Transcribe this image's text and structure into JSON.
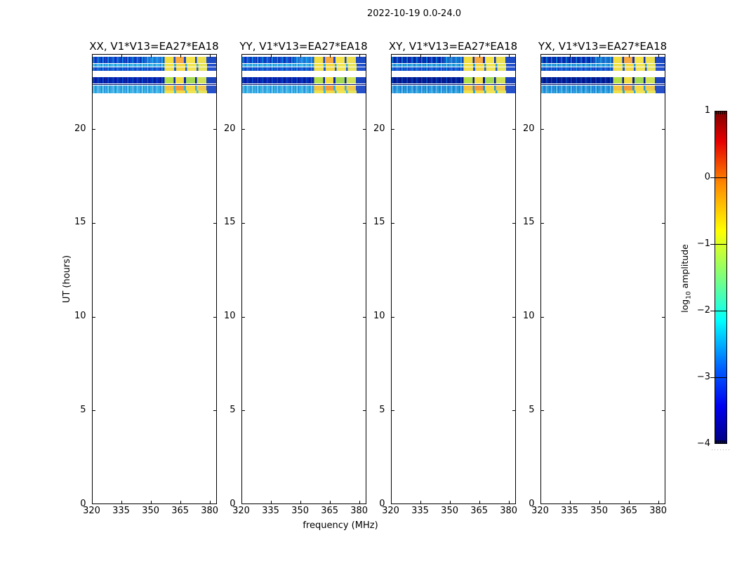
{
  "figure": {
    "title": "2022-10-19 0.0-24.0",
    "xlabel": "frequency (MHz)",
    "ylabel": "UT (hours)",
    "colorbar": {
      "label_prefix": "log",
      "label_sub": "10",
      "label_suffix": " amplitude",
      "colormap": "jet",
      "range": [
        -4,
        1
      ],
      "ticks": [
        {
          "label": "1",
          "value": 1
        },
        {
          "label": "0",
          "value": 0
        },
        {
          "label": "−1",
          "value": -1
        },
        {
          "label": "−2",
          "value": -2
        },
        {
          "label": "−3",
          "value": -3
        },
        {
          "label": "−4",
          "value": -4
        }
      ],
      "gradient": [
        "#7f0000 0%",
        "#e60000 9%",
        "#ff8c00 22%",
        "#ffff00 36%",
        "#7dff7d 50%",
        "#00ffff 63%",
        "#0064ff 77%",
        "#0000f0 89%",
        "#00007f 100%"
      ]
    }
  },
  "chart_data": {
    "type": "heatmap",
    "panels": [
      {
        "title": "XX, V1*V13=EA27*EA18",
        "tone": "normal"
      },
      {
        "title": "YY, V1*V13=EA27*EA18",
        "tone": "normal"
      },
      {
        "title": "XY, V1*V13=EA27*EA18",
        "tone": "dark"
      },
      {
        "title": "YX, V1*V13=EA27*EA18",
        "tone": "dark"
      }
    ],
    "x_range": [
      320,
      383.5
    ],
    "y_range": [
      0,
      24
    ],
    "x_ticks": [
      320,
      335,
      350,
      365,
      380
    ],
    "y_ticks": [
      0,
      5,
      10,
      15,
      20
    ],
    "block_freq_start_mhz": 357,
    "bands": [
      {
        "ut_start": 23.55,
        "ut_end": 23.87,
        "kind": "noisy-blue",
        "blocks": "bright"
      },
      {
        "ut_start": 23.35,
        "ut_end": 23.48,
        "kind": "thin-cyan",
        "blocks": "thin"
      },
      {
        "ut_start": 23.14,
        "ut_end": 23.31,
        "kind": "thin-blue",
        "blocks": "thin"
      },
      {
        "ut_start": 22.43,
        "ut_end": 22.79,
        "kind": "dark-blue",
        "blocks": "green"
      },
      {
        "ut_start": 22.36,
        "ut_end": 22.41,
        "kind": "navy-line",
        "blocks": "none"
      },
      {
        "ut_start": 22.09,
        "ut_end": 22.34,
        "kind": "cyan",
        "blocks": "orange"
      },
      {
        "ut_start": 21.94,
        "ut_end": 22.06,
        "kind": "thin-cyan",
        "blocks": "thin"
      }
    ]
  }
}
